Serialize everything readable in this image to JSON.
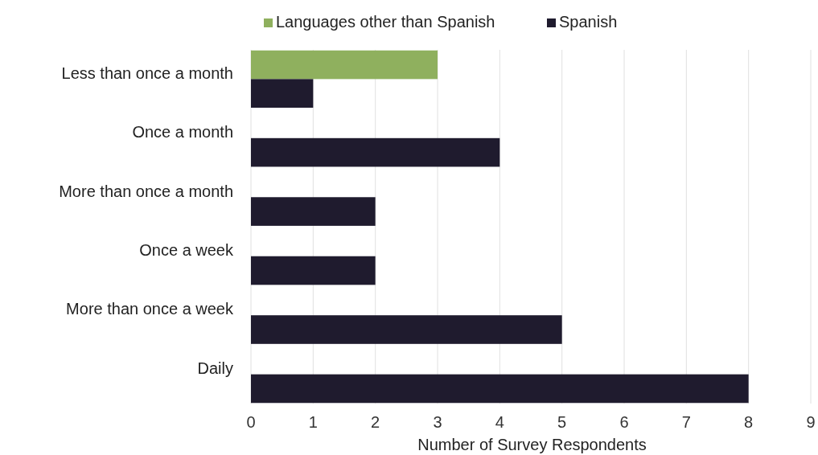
{
  "chart_data": {
    "type": "bar",
    "orientation": "horizontal",
    "xlabel": "Number of Survey Respondents",
    "categories": [
      "Less than once a month",
      "Once a month",
      "More than once a month",
      "Once a week",
      "More than once a week",
      "Daily"
    ],
    "series": [
      {
        "name": "Languages other than Spanish",
        "color": "#8fb05e",
        "values": [
          3,
          0,
          0,
          0,
          0,
          0
        ]
      },
      {
        "name": "Spanish",
        "color": "#1f1b2e",
        "values": [
          1,
          4,
          2,
          2,
          5,
          8
        ]
      }
    ],
    "xlim": [
      0,
      9
    ],
    "xticks": [
      0,
      1,
      2,
      3,
      4,
      5,
      6,
      7,
      8,
      9
    ],
    "grid": "x",
    "legend": "top"
  }
}
